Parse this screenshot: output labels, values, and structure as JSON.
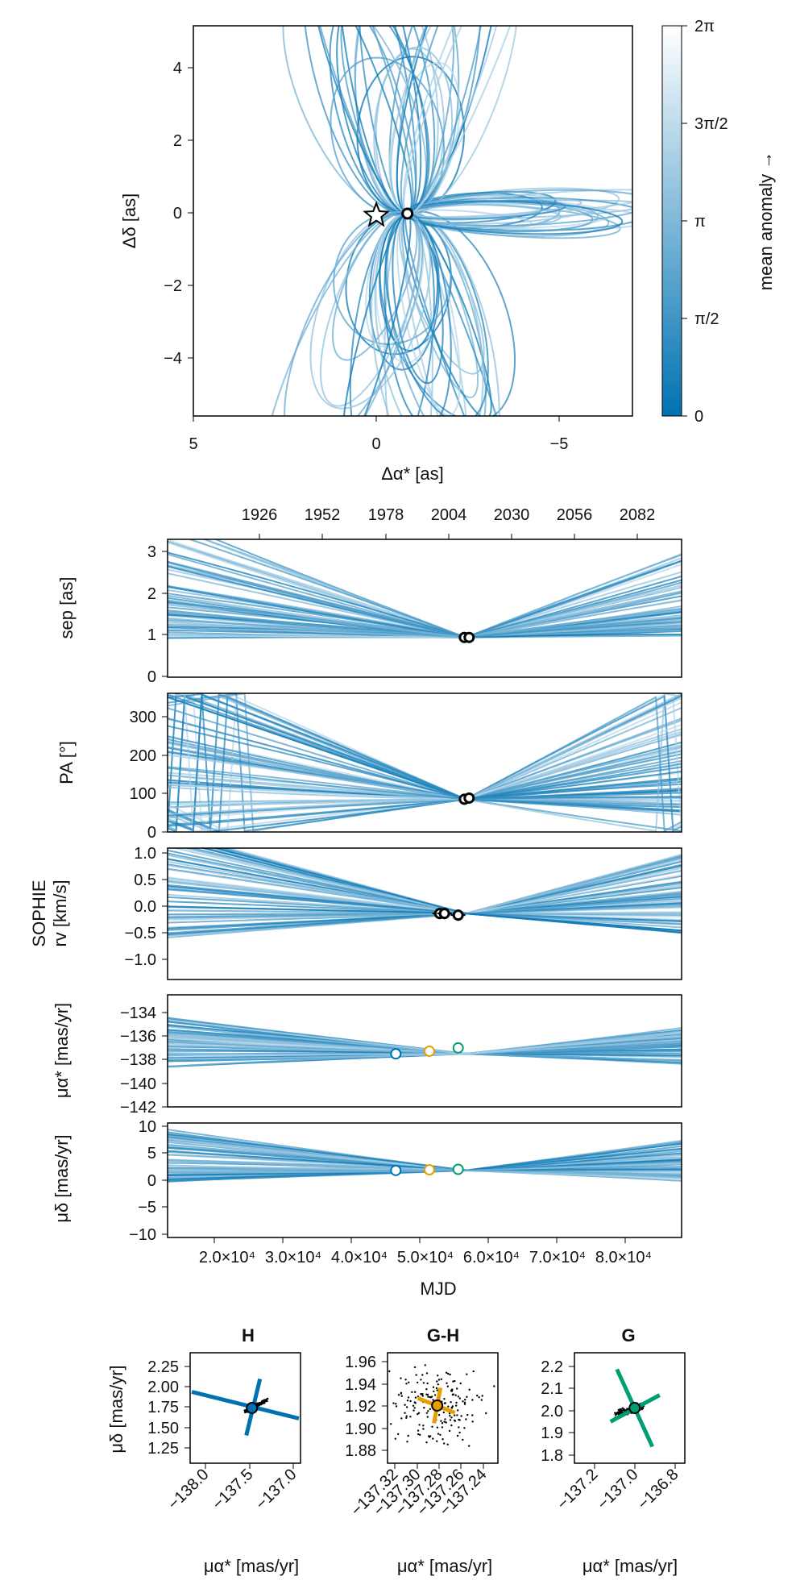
{
  "figure": {
    "orbit_panel": {
      "xlabel": "Δα* [as]",
      "ylabel": "Δδ [as]",
      "xticks": [
        "5",
        "0",
        "−5"
      ],
      "yticks": [
        "4",
        "2",
        "0",
        "−2",
        "−4"
      ],
      "colorbar": {
        "label": "mean anomaly →",
        "ticks": [
          "0",
          "π/2",
          "π",
          "3π/2",
          "2π"
        ],
        "color_low": "#0072b2",
        "color_high": "#ffffff"
      }
    },
    "time_panels": {
      "top_year_ticks": [
        "1926",
        "1952",
        "1978",
        "2004",
        "2030",
        "2056",
        "2082"
      ],
      "xlabel": "MJD",
      "mjd_ticks": [
        "2.0×10⁴",
        "3.0×10⁴",
        "4.0×10⁴",
        "5.0×10⁴",
        "6.0×10⁴",
        "7.0×10⁴",
        "8.0×10⁴"
      ],
      "sep": {
        "ylabel": "sep [as]",
        "yticks": [
          "3",
          "2",
          "1",
          "0"
        ]
      },
      "pa": {
        "ylabel": "PA [°]",
        "yticks": [
          "300",
          "200",
          "100",
          "0"
        ]
      },
      "rv": {
        "ylabel_line1": "SOPHIE",
        "ylabel_line2": "rv [km/s]",
        "yticks": [
          "1.0",
          "0.5",
          "0.0",
          "−0.5",
          "−1.0"
        ]
      },
      "pmra": {
        "ylabel": "μα* [mas/yr]",
        "yticks": [
          "−134",
          "−136",
          "−138",
          "−140",
          "−142"
        ]
      },
      "pmdec": {
        "ylabel": "μδ [mas/yr]",
        "yticks": [
          "10",
          "5",
          "0",
          "−5",
          "−10"
        ]
      }
    },
    "pm_panels": {
      "xlabel": "μα* [mas/yr]",
      "ylabel": "μδ [mas/yr]",
      "h": {
        "title": "H",
        "xticks": [
          "−138.0",
          "−137.5",
          "−137.0"
        ],
        "yticks": [
          "2.25",
          "2.00",
          "1.75",
          "1.50",
          "1.25"
        ],
        "color": "#0072b2"
      },
      "gh": {
        "title": "G-H",
        "xticks": [
          "−137.32",
          "−137.30",
          "−137.28",
          "−137.26",
          "−137.24"
        ],
        "yticks": [
          "1.96",
          "1.94",
          "1.92",
          "1.90",
          "1.88"
        ],
        "color": "#e69f00"
      },
      "g": {
        "title": "G",
        "xticks": [
          "−137.2",
          "−137.0",
          "−136.8"
        ],
        "yticks": [
          "2.2",
          "2.1",
          "2.0",
          "1.9",
          "1.8"
        ],
        "color": "#009e73"
      }
    }
  },
  "chart_data": [
    {
      "type": "line",
      "title": "",
      "xlabel": "Δα* [as]",
      "ylabel": "Δδ [as]",
      "xlim": [
        5,
        -7
      ],
      "ylim": [
        -5.5,
        5.2
      ],
      "colorbar": "mean anomaly →",
      "primary_star": {
        "x": 0,
        "y": 0
      },
      "companion_observed": {
        "x": 0.85,
        "y": 0.05
      },
      "orbit_extent": {
        "x": [
          -4.4,
          2.4
        ],
        "y": [
          -4.8,
          4.8
        ]
      }
    },
    {
      "type": "line",
      "ylabel": "sep [as]",
      "xlabel": "MJD",
      "xlim": [
        15000,
        90000
      ],
      "ylim": [
        -0.1,
        3.3
      ],
      "observations": [
        {
          "mjd": 58300,
          "value": 0.88
        },
        {
          "mjd": 59000,
          "value": 0.88
        }
      ],
      "model_spread": {
        "mjd": [
          15000,
          58500,
          90000
        ],
        "min": [
          0.6,
          0.88,
          0.5
        ],
        "max": [
          3.0,
          0.88,
          2.4
        ]
      }
    },
    {
      "type": "line",
      "ylabel": "PA [°]",
      "xlabel": "MJD",
      "xlim": [
        15000,
        90000
      ],
      "ylim": [
        0,
        360
      ],
      "observations": [
        {
          "mjd": 58300,
          "value": 85
        },
        {
          "mjd": 59000,
          "value": 88
        }
      ]
    },
    {
      "type": "line",
      "ylabel": "SOPHIE rv [km/s]",
      "xlabel": "MJD",
      "xlim": [
        15000,
        90000
      ],
      "ylim": [
        -1.35,
        1.1
      ],
      "observations": [
        {
          "mjd": 54700,
          "value": -0.12
        },
        {
          "mjd": 55400,
          "value": -0.12
        },
        {
          "mjd": 57400,
          "value": -0.15
        }
      ]
    },
    {
      "type": "line",
      "ylabel": "μα* [mas/yr]",
      "xlabel": "MJD",
      "xlim": [
        15000,
        90000
      ],
      "ylim": [
        -142,
        -132.5
      ],
      "observations": [
        {
          "name": "H",
          "mjd": 48300,
          "value": -137.5
        },
        {
          "name": "G-H",
          "mjd": 53200,
          "value": -137.28
        },
        {
          "name": "G",
          "mjd": 57400,
          "value": -137.0
        }
      ]
    },
    {
      "type": "line",
      "ylabel": "μδ [mas/yr]",
      "xlabel": "MJD",
      "xlim": [
        15000,
        90000
      ],
      "ylim": [
        -10.5,
        10.5
      ],
      "observations": [
        {
          "name": "H",
          "mjd": 48300,
          "value": 1.8
        },
        {
          "name": "G-H",
          "mjd": 53200,
          "value": 1.92
        },
        {
          "name": "G",
          "mjd": 57400,
          "value": 2.0
        }
      ]
    },
    {
      "type": "scatter",
      "title": "H",
      "xlim": [
        -138.2,
        -136.95
      ],
      "ylim": [
        1.2,
        2.4
      ],
      "measurement": {
        "x": -137.5,
        "y": 1.8
      }
    },
    {
      "type": "scatter",
      "title": "G-H",
      "xlim": [
        -137.33,
        -137.23
      ],
      "ylim": [
        1.875,
        1.965
      ],
      "measurement": {
        "x": -137.285,
        "y": 1.922
      }
    },
    {
      "type": "scatter",
      "title": "G",
      "xlim": [
        -137.3,
        -136.75
      ],
      "ylim": [
        1.75,
        2.25
      ],
      "measurement": {
        "x": -137.0,
        "y": 2.0
      }
    }
  ]
}
